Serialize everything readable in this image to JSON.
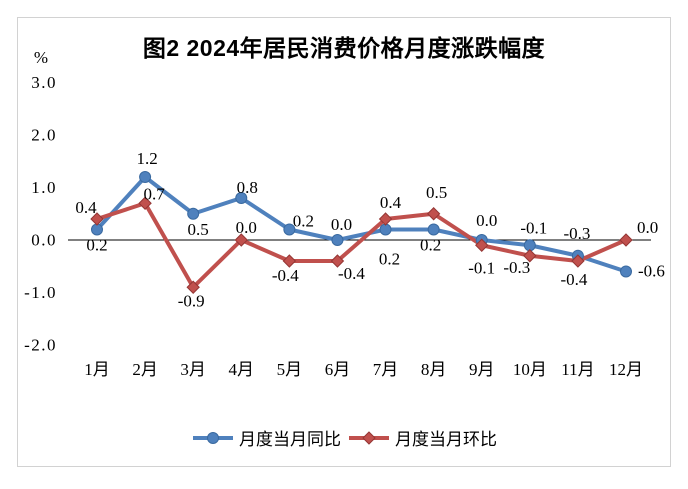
{
  "page": {
    "background": "#ffffff",
    "frame_border_color": "#d2d2d2"
  },
  "chart_data": {
    "type": "line",
    "title": "图2 2024年居民消费价格月度涨跌幅度",
    "y_axis_unit": "%",
    "categories": [
      "1月",
      "2月",
      "3月",
      "4月",
      "5月",
      "6月",
      "7月",
      "8月",
      "9月",
      "10月",
      "11月",
      "12月"
    ],
    "y_ticks": [
      3.0,
      2.0,
      1.0,
      0.0,
      -1.0,
      -2.0
    ],
    "y_tick_labels": [
      "3.0",
      "2.0",
      "1.0",
      "0.0",
      "-1.0",
      "-2.0"
    ],
    "ylim": [
      -2.0,
      3.0
    ],
    "grid": false,
    "legend_position": "bottom",
    "axis_line_color": "#000000",
    "series": [
      {
        "name": "月度当月同比",
        "marker": "circle",
        "color": "#4f81bd",
        "marker_edge": "#3a6aa0",
        "values": [
          0.2,
          1.2,
          0.5,
          0.8,
          0.2,
          0.0,
          0.2,
          0.2,
          0.0,
          -0.1,
          -0.3,
          -0.6
        ],
        "labels": [
          "0.2",
          "1.2",
          "0.5",
          "0.8",
          "0.2",
          "0.0",
          "0.2",
          "0.2",
          "0.0",
          "-0.1",
          "-0.3",
          "-0.6"
        ],
        "label_offsets": [
          [
            0,
            21,
            "m"
          ],
          [
            2,
            -13,
            "m"
          ],
          [
            5,
            21,
            "m"
          ],
          [
            6,
            -5,
            "m"
          ],
          [
            14,
            -3,
            "m"
          ],
          [
            4,
            -10,
            "m"
          ],
          [
            4,
            35,
            "m"
          ],
          [
            -3,
            21,
            "m"
          ],
          [
            5,
            -14,
            "m"
          ],
          [
            4,
            -12,
            "m"
          ],
          [
            -1,
            -17,
            "m"
          ],
          [
            12,
            5,
            "s"
          ]
        ]
      },
      {
        "name": "月度当月环比",
        "marker": "diamond",
        "color": "#c0504d",
        "marker_edge": "#943634",
        "values": [
          0.4,
          0.7,
          -0.9,
          0.0,
          -0.4,
          -0.4,
          0.4,
          0.5,
          -0.1,
          -0.3,
          -0.4,
          0.0
        ],
        "labels": [
          "0.4",
          "0.7",
          "-0.9",
          "0.0",
          "-0.4",
          "-0.4",
          "0.4",
          "0.5",
          "-0.1",
          "-0.3",
          "-0.4",
          "0.0"
        ],
        "label_offsets": [
          [
            -11,
            -6,
            "m"
          ],
          [
            9,
            -4,
            "m"
          ],
          [
            -2,
            19,
            "m"
          ],
          [
            5,
            -7,
            "m"
          ],
          [
            -4,
            20,
            "m"
          ],
          [
            14,
            18,
            "m"
          ],
          [
            5,
            -11,
            "m"
          ],
          [
            3,
            -16,
            "m"
          ],
          [
            0,
            28,
            "m"
          ],
          [
            -13,
            17,
            "m"
          ],
          [
            -4,
            24,
            "m"
          ],
          [
            11,
            -7,
            "s"
          ]
        ]
      }
    ]
  }
}
